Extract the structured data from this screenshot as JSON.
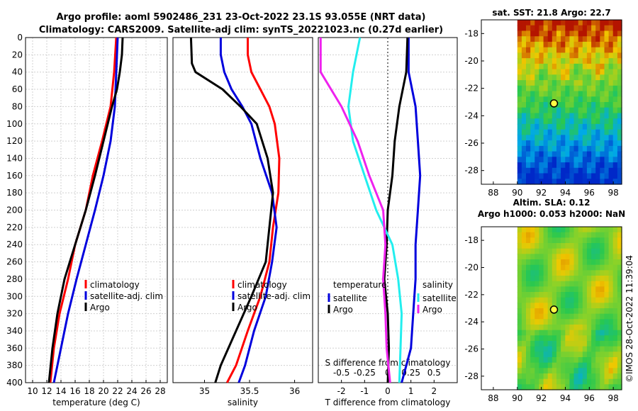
{
  "title_line1": "Argo profile: aoml 5902486_231 23-Oct-2022 23.1S 93.055E (NRT data)",
  "title_line2": "Climatology: CARS2009. Satellite-adj clim: synTS_20221023.nc (0.27d earlier)",
  "colors": {
    "climatology": "#ff0000",
    "satellite": "#0000dd",
    "argo": "#000000",
    "salinity": "#22eeee",
    "salinity_sat": "#ee22ee"
  },
  "depth_ticks": [
    "0",
    "20",
    "40",
    "60",
    "80",
    "100",
    "120",
    "140",
    "160",
    "180",
    "200",
    "220",
    "240",
    "260",
    "280",
    "300",
    "320",
    "340",
    "360",
    "380",
    "400"
  ],
  "chart_data": [
    {
      "type": "line",
      "name": "temperature",
      "xlabel": "temperature (deg C)",
      "ylabel": "depth",
      "xlim": [
        9,
        29
      ],
      "ylim": [
        400,
        0
      ],
      "xticks": [
        "10",
        "12",
        "14",
        "16",
        "18",
        "20",
        "22",
        "24",
        "26",
        "28"
      ],
      "legend": [
        "climatology",
        "satellite-adj. clim",
        "Argo"
      ],
      "series": [
        {
          "name": "climatology",
          "depth": [
            0,
            40,
            80,
            120,
            160,
            200,
            240,
            280,
            320,
            360,
            400
          ],
          "values": [
            21.8,
            21.5,
            21.0,
            19.8,
            18.5,
            17.5,
            16.0,
            15.0,
            13.8,
            13.0,
            12.5
          ]
        },
        {
          "name": "satellite-adj. clim",
          "depth": [
            0,
            40,
            80,
            120,
            160,
            200,
            240,
            280,
            320,
            360,
            400
          ],
          "values": [
            22.0,
            21.8,
            21.6,
            21.0,
            20.0,
            18.8,
            17.5,
            16.2,
            15.0,
            14.0,
            13.0
          ]
        },
        {
          "name": "Argo",
          "depth": [
            0,
            20,
            40,
            60,
            80,
            120,
            160,
            200,
            240,
            280,
            320,
            360,
            400
          ],
          "values": [
            22.7,
            22.6,
            22.3,
            21.9,
            21.2,
            20.0,
            18.8,
            17.5,
            16.0,
            14.5,
            13.5,
            12.8,
            12.3
          ]
        }
      ]
    },
    {
      "type": "line",
      "name": "salinity",
      "xlabel": "salinity",
      "ylabel": "depth",
      "xlim": [
        34.65,
        36.2
      ],
      "ylim": [
        400,
        0
      ],
      "xticks": [
        "35",
        "35.5",
        "36"
      ],
      "legend": [
        "climatology",
        "satellite-adj. clim",
        "Argo"
      ],
      "series": [
        {
          "name": "climatology",
          "depth": [
            0,
            20,
            40,
            60,
            80,
            100,
            140,
            180,
            220,
            260,
            300,
            340,
            380,
            400
          ],
          "values": [
            35.48,
            35.48,
            35.52,
            35.62,
            35.72,
            35.78,
            35.83,
            35.82,
            35.76,
            35.72,
            35.62,
            35.48,
            35.35,
            35.25
          ]
        },
        {
          "name": "satellite-adj. clim",
          "depth": [
            0,
            20,
            40,
            60,
            80,
            100,
            140,
            180,
            220,
            260,
            300,
            340,
            380,
            400
          ],
          "values": [
            35.18,
            35.18,
            35.22,
            35.3,
            35.42,
            35.52,
            35.62,
            35.75,
            35.8,
            35.75,
            35.68,
            35.55,
            35.45,
            35.38
          ]
        },
        {
          "name": "Argo",
          "depth": [
            0,
            30,
            40,
            60,
            80,
            100,
            140,
            180,
            220,
            260,
            300,
            340,
            380,
            400
          ],
          "values": [
            34.85,
            34.86,
            34.9,
            35.2,
            35.4,
            35.58,
            35.7,
            35.76,
            35.72,
            35.68,
            35.52,
            35.35,
            35.18,
            35.12
          ]
        }
      ]
    },
    {
      "type": "line",
      "name": "difference from climatology",
      "xlabel": "T difference from climatology",
      "x2label": "S difference from climatology",
      "xlim": [
        -3,
        3
      ],
      "ylim": [
        400,
        0
      ],
      "xticks": [
        "-2",
        "-1",
        "0",
        "1",
        "2"
      ],
      "x2ticks": [
        "-0.5",
        "-0.25",
        "0",
        "0.25",
        "0.5"
      ],
      "legend_left_title": "temperature",
      "legend_right_title": "salinity",
      "legend_left": [
        "satellite",
        "Argo"
      ],
      "legend_right": [
        "satellite",
        "Argo"
      ],
      "series": [
        {
          "name": "T satellite",
          "depth": [
            0,
            40,
            80,
            120,
            160,
            200,
            240,
            280,
            320,
            360,
            400
          ],
          "values": [
            0.9,
            0.9,
            1.2,
            1.3,
            1.4,
            1.3,
            1.2,
            1.2,
            1.1,
            1.0,
            0.6
          ]
        },
        {
          "name": "T Argo",
          "depth": [
            0,
            40,
            80,
            120,
            160,
            200,
            240,
            280,
            320,
            360,
            400
          ],
          "values": [
            0.85,
            0.8,
            0.5,
            0.3,
            0.2,
            0.0,
            -0.05,
            -0.15,
            0.0,
            0.05,
            0.0
          ]
        },
        {
          "name": "S satellite",
          "depth": [
            0,
            40,
            80,
            120,
            160,
            200,
            240,
            280,
            320,
            360,
            400
          ],
          "values": [
            -1.2,
            -1.5,
            -1.7,
            -1.5,
            -1.0,
            -0.5,
            0.2,
            0.45,
            0.6,
            0.55,
            0.5
          ]
        },
        {
          "name": "S Argo",
          "depth": [
            0,
            40,
            80,
            120,
            160,
            200,
            240,
            280,
            320,
            360,
            400
          ],
          "values": [
            -2.9,
            -2.9,
            -2.0,
            -1.3,
            -0.8,
            -0.2,
            -0.1,
            -0.2,
            -0.1,
            -0.05,
            0.1
          ]
        }
      ]
    },
    {
      "type": "heatmap",
      "name": "sat SST map",
      "title": "sat. SST: 21.8 Argo: 22.7",
      "xlim": [
        87,
        98.7
      ],
      "ylim": [
        -29,
        -17
      ],
      "xticks": [
        "88",
        "90",
        "92",
        "94",
        "96",
        "98"
      ],
      "yticks": [
        "-18",
        "-20",
        "-22",
        "-24",
        "-26",
        "-28"
      ],
      "marker": {
        "lon": 93.055,
        "lat": -23.1
      },
      "data_lon_min": 90
    },
    {
      "type": "heatmap",
      "name": "altimetry SLA map",
      "title1": "Altim. SLA: 0.12",
      "title2": "Argo h1000: 0.053 h2000: NaN",
      "xlim": [
        87,
        98.7
      ],
      "ylim": [
        -29,
        -17
      ],
      "xticks": [
        "88",
        "90",
        "92",
        "94",
        "96",
        "98"
      ],
      "yticks": [
        "-18",
        "-20",
        "-22",
        "-24",
        "-26",
        "-28"
      ],
      "marker": {
        "lon": 93.055,
        "lat": -23.1
      },
      "data_lon_min": 90
    }
  ],
  "watermark": "©IMOS 28-Oct-2022 11:39:04"
}
